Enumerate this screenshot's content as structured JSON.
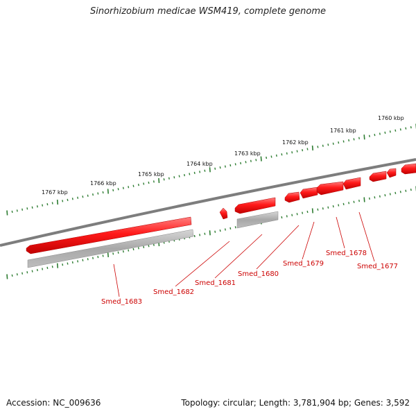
{
  "title": "Sinorhizobium medicae WSM419, complete genome",
  "footer": {
    "accession": "Accession: NC_009636",
    "summary": "Topology: circular; Length: 3,781,904 bp; Genes: 3,592"
  },
  "colors": {
    "gene": "#ee0000",
    "gene_highlight": "#ff7070",
    "gene_dark": "#a00000",
    "rna_gray": "#999999",
    "genome_line": "#808080",
    "ticks": "#2e7d32",
    "label": "#cc0000"
  },
  "ruler_labels": [
    "1767 kbp",
    "1766 kbp",
    "1765 kbp",
    "1764 kbp",
    "1763 kbp",
    "1762 kbp",
    "1761 kbp",
    "1760 kbp"
  ],
  "genes": [
    "Smed_1683",
    "Smed_1682",
    "Smed_1681",
    "Smed_1680",
    "Smed_1679",
    "Smed_1678",
    "Smed_1677"
  ]
}
